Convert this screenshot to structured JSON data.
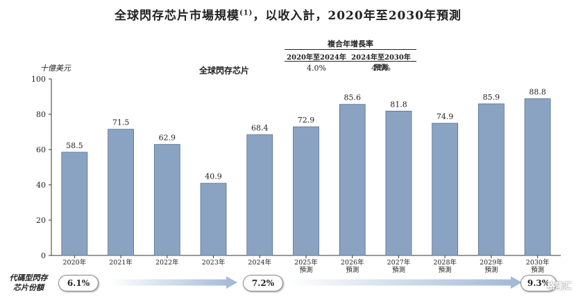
{
  "title": "全球閃存芯片市場規模",
  "title_sup": "(1)",
  "title_rest": "，以收入計，2020年至2030年預測",
  "unit_label": "十億美元",
  "series_label": "全球閃存芯片",
  "cagr": {
    "title": "複合年增長率",
    "columns": [
      {
        "header": "2020年至2024年",
        "value": "4.0%"
      },
      {
        "header": "2024年至2030年預測",
        "value": "4.5%"
      }
    ]
  },
  "share": {
    "label_line1": "代碼型閃存",
    "label_line2": "芯片份額",
    "values": [
      "6.1%",
      "7.2%",
      "9.3%"
    ]
  },
  "watermark": "格隆汇",
  "colors": {
    "bar": "#8aa3c2",
    "bar_stroke": "#5b6f8a",
    "arrow": "#9fb7d6"
  },
  "chart_data": {
    "type": "bar",
    "categories": [
      [
        "2020年"
      ],
      [
        "2021年"
      ],
      [
        "2022年"
      ],
      [
        "2023年"
      ],
      [
        "2024年"
      ],
      [
        "2025年",
        "預測"
      ],
      [
        "2026年",
        "預測"
      ],
      [
        "2027年",
        "預測"
      ],
      [
        "2028年",
        "預測"
      ],
      [
        "2029年",
        "預測"
      ],
      [
        "2030年",
        "預測"
      ]
    ],
    "values": [
      58.5,
      71.5,
      62.9,
      40.9,
      68.4,
      72.9,
      85.6,
      81.8,
      74.9,
      85.9,
      88.8
    ],
    "ylim": [
      0,
      100
    ],
    "yticks": [
      0,
      20,
      40,
      60,
      80,
      100
    ],
    "grid": false,
    "legend": false
  }
}
